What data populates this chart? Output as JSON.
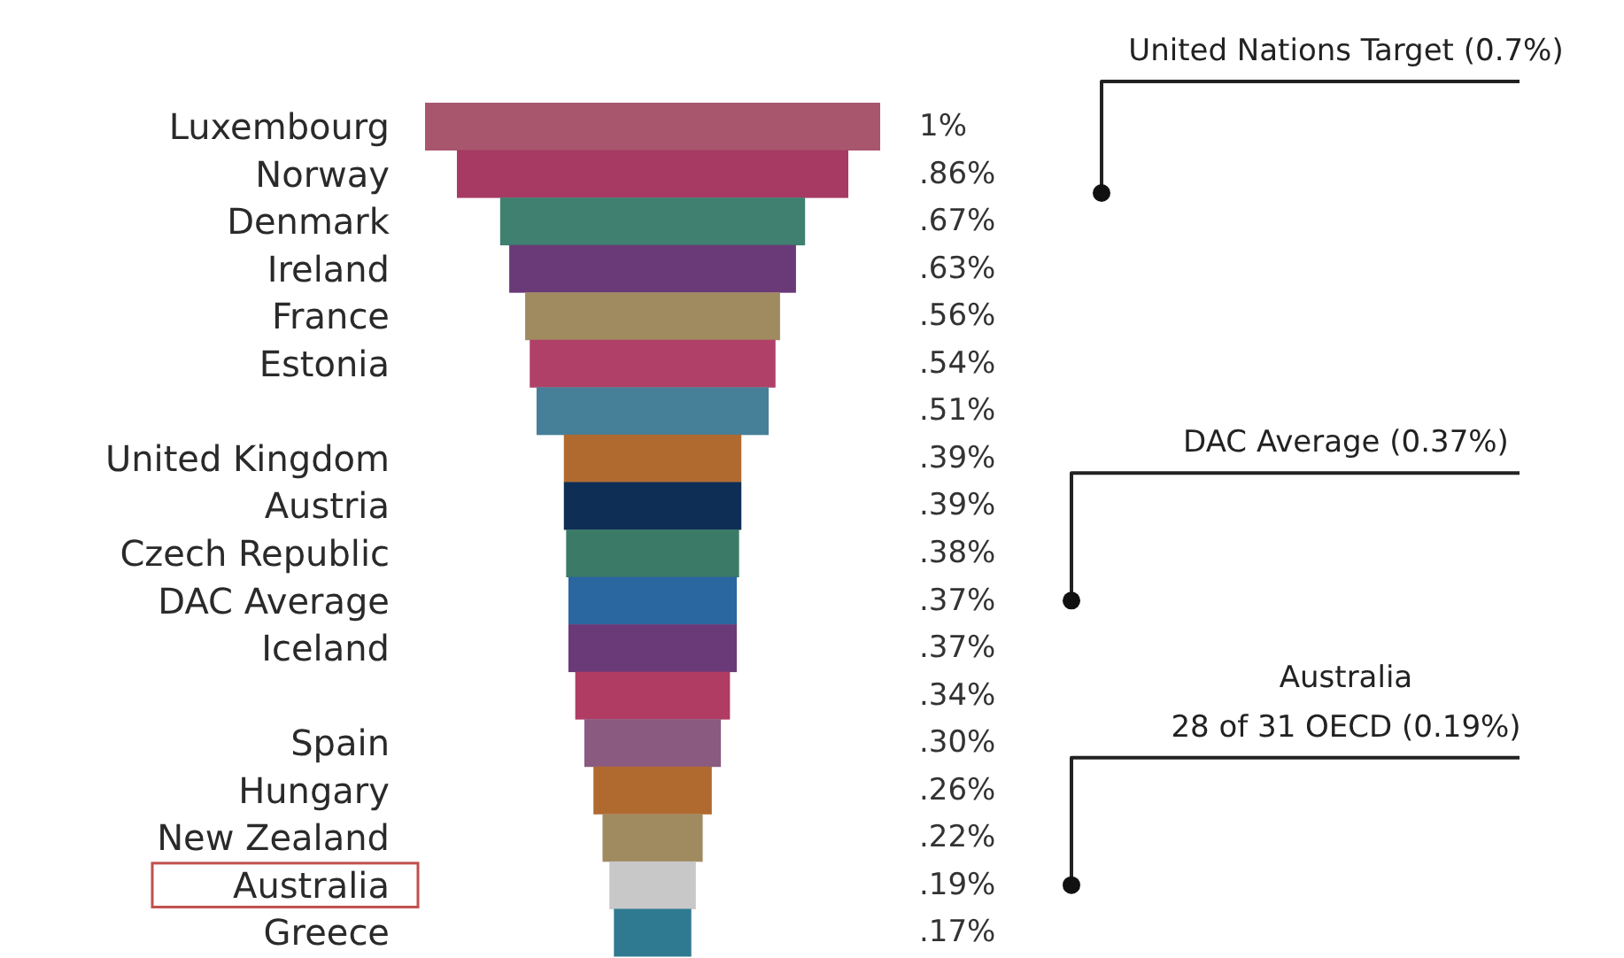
{
  "chart_data": {
    "type": "other",
    "categories": [
      "Luxembourg",
      "Norway",
      "Denmark",
      "Ireland",
      "France",
      "Estonia",
      null,
      "United Kingdom",
      "Austria",
      "Czech Republic",
      "DAC Average",
      "Iceland",
      null,
      "Spain",
      "Hungary",
      "New Zealand",
      "Australia",
      "Greece"
    ],
    "values": [
      1,
      0.86,
      0.67,
      0.63,
      0.56,
      0.54,
      0.51,
      0.39,
      0.39,
      0.38,
      0.37,
      0.37,
      0.34,
      0.3,
      0.26,
      0.22,
      0.19,
      0.17
    ],
    "value_labels": [
      "1%",
      ".86%",
      ".67%",
      ".63%",
      ".56%",
      ".54%",
      ".51%",
      ".39%",
      ".39%",
      ".38%",
      ".37%",
      ".37%",
      ".34%",
      ".30%",
      ".26%",
      ".22%",
      ".19%",
      ".17%"
    ],
    "colors": [
      "#a8566e",
      "#a63a63",
      "#3f8070",
      "#6a3a78",
      "#a08a60",
      "#b04068",
      "#467f98",
      "#b06a30",
      "#0e2e55",
      "#3c7a68",
      "#2a66a0",
      "#6a3a78",
      "#b03c64",
      "#8a5a80",
      "#b06a30",
      "#a08a60",
      "#c8c8c8",
      "#2f7a90"
    ],
    "annotations": [
      "United Nations Target (0.7%)",
      {
        "text": "DAC Average (0.37%)",
        "y": "DAC Average"
      },
      {
        "text": "Australia\n28 of 31 OECD (0.19%)",
        "y": "Australia"
      }
    ]
  }
}
